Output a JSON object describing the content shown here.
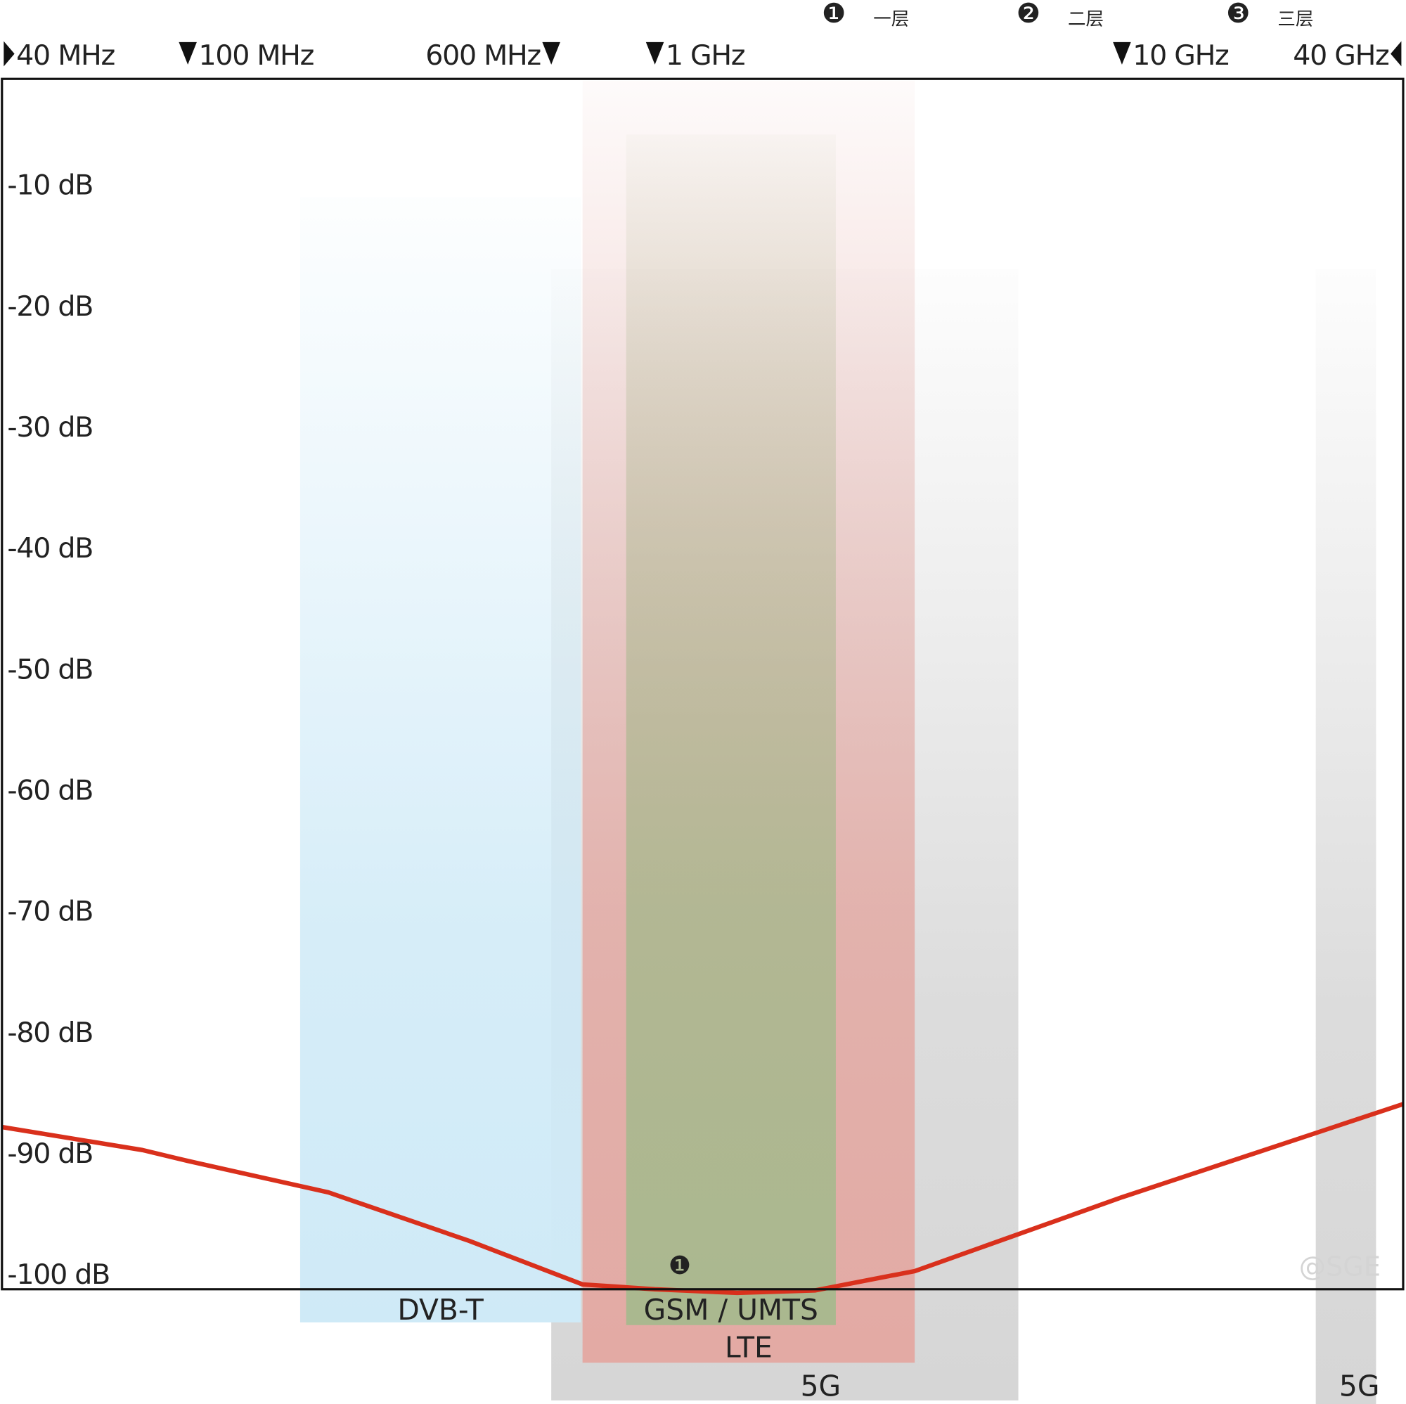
{
  "chart_data": {
    "type": "line",
    "x": [
      40,
      80,
      100,
      200,
      400,
      700,
      1000,
      1500,
      2200,
      3600,
      10000,
      40000
    ],
    "values": [
      -86.6,
      -88.5,
      -89.4,
      -92,
      -96,
      -99.6,
      -100,
      -100.3,
      -100.1,
      -98.5,
      -92.4,
      -84.7
    ],
    "color": "#d9301c",
    "xscale": "log",
    "xlim": [
      40,
      40000
    ],
    "xticks": [
      {
        "value": 40,
        "label": "40 MHz"
      },
      {
        "value": 100,
        "label": "100 MHz"
      },
      {
        "value": 600,
        "label": "600 MHz"
      },
      {
        "value": 1000,
        "label": "1 GHz"
      },
      {
        "value": 10000,
        "label": "10 GHz"
      },
      {
        "value": 40000,
        "label": "40 GHz"
      }
    ],
    "ylim": [
      -100,
      0
    ],
    "yticks": [
      {
        "value": -10,
        "label": "-10 dB"
      },
      {
        "value": -20,
        "label": "-20 dB"
      },
      {
        "value": -30,
        "label": "-30 dB"
      },
      {
        "value": -40,
        "label": "-40 dB"
      },
      {
        "value": -50,
        "label": "-50 dB"
      },
      {
        "value": -60,
        "label": "-60 dB"
      },
      {
        "value": -70,
        "label": "-70 dB"
      },
      {
        "value": -80,
        "label": "-80 dB"
      },
      {
        "value": -90,
        "label": "-90 dB"
      },
      {
        "value": -100,
        "label": "-100 dB"
      }
    ],
    "grid": true,
    "bands": [
      {
        "name": "5G",
        "range": [
          600,
          6000
        ],
        "color": "#d6d6d6"
      },
      {
        "name": "5G",
        "range": [
          26000,
          35000
        ],
        "color": "#d6d6d6"
      },
      {
        "name": "LTE",
        "range": [
          700,
          3600
        ],
        "color": "#e3aaa4"
      },
      {
        "name": "DVB-T",
        "range": [
          174,
          694
        ],
        "color": "#cfeaf7"
      },
      {
        "name": "GSM / UMTS",
        "range": [
          868,
          2440
        ],
        "color": "#aab88f"
      }
    ],
    "layers": [
      {
        "marker": "❶",
        "label": "一层"
      },
      {
        "marker": "❷",
        "label": "二层"
      },
      {
        "marker": "❸",
        "label": "三层"
      }
    ],
    "annotation": "❶",
    "watermark": "@SGE"
  }
}
